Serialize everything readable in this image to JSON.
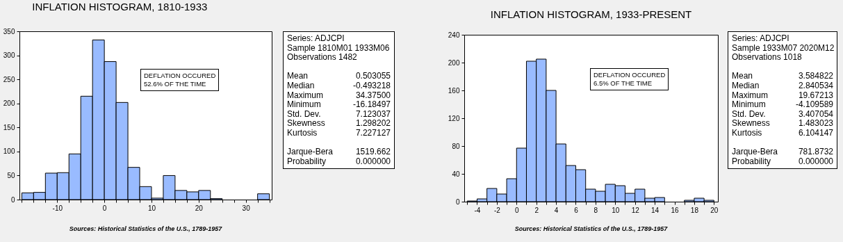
{
  "chart_data": [
    {
      "type": "histogram",
      "title": "INFLATION HISTOGRAM, 1810-1933",
      "color": "#99bbff",
      "bins": [
        -17.5,
        -15,
        -12.5,
        -10,
        -7.5,
        -5,
        -2.5,
        0,
        2.5,
        5,
        7.5,
        10,
        12.5,
        15,
        17.5,
        20,
        22.5,
        25,
        27.5,
        30,
        32.5,
        35
      ],
      "values": [
        14,
        15,
        55,
        56,
        95,
        215,
        332,
        287,
        202,
        67,
        27,
        3,
        50,
        19,
        16,
        19,
        2,
        0,
        0,
        0,
        12
      ],
      "xlim": [
        -18,
        35.5
      ],
      "xticks": [
        {
          "value": -17.5,
          "label": null
        },
        {
          "value": -15,
          "label": null
        },
        {
          "value": -12.5,
          "label": null
        },
        -10,
        {
          "value": -7.5,
          "label": null
        },
        {
          "value": -5,
          "label": null
        },
        {
          "value": -2.5,
          "label": null
        },
        0,
        {
          "value": 2.5,
          "label": null
        },
        {
          "value": 5,
          "label": null
        },
        {
          "value": 7.5,
          "label": null
        },
        10,
        {
          "value": 12.5,
          "label": null
        },
        {
          "value": 15,
          "label": null
        },
        {
          "value": 17.5,
          "label": null
        },
        20,
        {
          "value": 22.5,
          "label": null
        },
        {
          "value": 25,
          "label": null
        },
        {
          "value": 27.5,
          "label": null
        },
        30,
        {
          "value": 32.5,
          "label": null
        },
        {
          "value": 35,
          "label": null
        }
      ],
      "ylim": [
        0,
        350
      ],
      "yticks": [
        0,
        50,
        100,
        150,
        200,
        250,
        300,
        350
      ],
      "annotations": [
        "DEFLATION OCCURED\n52.6% OF THE TIME",
        "Series: ADJCPI\nSample 1810M01 1933M06\nObservations 1482\n\nMean\t0.503055\nMedian\t-0.493218\nMaximum\t34.37500\nMinimum\t-16.18497\nStd. Dev.\t7.123037\nSkewness\t1.298202\nKurtosis\t7.227127\n\nJarque-Bera\t1519.662\nProbability\t0.000000",
        "Sources: Historical Statistics of the U.S., 1789-1957"
      ]
    },
    {
      "type": "histogram",
      "title": "INFLATION HISTOGRAM, 1933-PRESENT",
      "color": "#99bbff",
      "bins": [
        -5,
        -4,
        -3,
        -2,
        -1,
        0,
        1,
        2,
        3,
        4,
        5,
        6,
        7,
        8,
        9,
        10,
        11,
        12,
        13,
        14,
        15,
        16,
        17,
        18,
        19,
        20
      ],
      "values": [
        1,
        4,
        19,
        11,
        33,
        77,
        202,
        205,
        160,
        83,
        52,
        46,
        18,
        15,
        25,
        23,
        12,
        18,
        5,
        6,
        0,
        0,
        2,
        5,
        2
      ],
      "xlim": [
        -5.3,
        20.4
      ],
      "xticks": [
        {
          "value": -5,
          "label": null
        },
        -4,
        {
          "value": -3,
          "label": null
        },
        -2,
        {
          "value": -1,
          "label": null
        },
        0,
        {
          "value": 1,
          "label": null
        },
        2,
        {
          "value": 3,
          "label": null
        },
        4,
        {
          "value": 5,
          "label": null
        },
        6,
        {
          "value": 7,
          "label": null
        },
        8,
        {
          "value": 9,
          "label": null
        },
        10,
        {
          "value": 11,
          "label": null
        },
        12,
        {
          "value": 13,
          "label": null
        },
        14,
        {
          "value": 15,
          "label": null
        },
        16,
        {
          "value": 17,
          "label": null
        },
        18,
        {
          "value": 19,
          "label": null
        },
        20
      ],
      "ylim": [
        0,
        240
      ],
      "yticks": [
        0,
        40,
        80,
        120,
        160,
        200,
        240
      ],
      "annotations": [
        "DEFLATION OCCURED\n6.5% OF THE TIME",
        "Series: ADJCPI\nSample 1933M07 2020M12\nObservations 1018\n\nMean\t3.584822\nMedian\t2.840534\nMaximum\t19.67213\nMinimum\t-4.109589\nStd. Dev.\t3.407054\nSkewness\t1.483023\nKurtosis\t6.104147\n\nJarque-Bera\t781.8732\nProbability\t0.000000",
        "Sources: Historical Statistics of the U.S., 1789-1957"
      ]
    }
  ]
}
